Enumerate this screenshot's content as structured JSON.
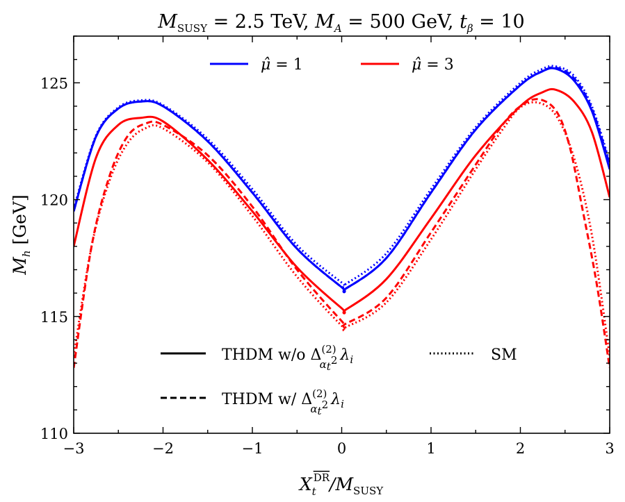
{
  "chart_data": {
    "type": "line",
    "title": {
      "lead": "M",
      "lead_sub": "SUSY",
      "rest1": " = 2.5 TeV, ",
      "lead2": "M",
      "lead2_sub": "A",
      "rest2": " = 500 GeV, ",
      "lead3": "t",
      "lead3_sub": "β",
      "rest3": " = 10"
    },
    "xlabel": {
      "main": "X",
      "sub": "t",
      "sup": "DR",
      "rest": "/M",
      "rest_sub": "SUSY"
    },
    "ylabel": {
      "main": "M",
      "sub": "h",
      "rest": " [GeV]"
    },
    "xlim": [
      -3,
      3
    ],
    "ylim": [
      110,
      127
    ],
    "xticks": [
      -3,
      -2,
      -1,
      0,
      1,
      2,
      3
    ],
    "xtick_labels": [
      "−3",
      "−2",
      "−1",
      "0",
      "1",
      "2",
      "3"
    ],
    "yticks": [
      110,
      115,
      120,
      125
    ],
    "ytick_labels": [
      "110",
      "115",
      "120",
      "125"
    ],
    "color_legend": [
      {
        "label_pre": "μ̂ = ",
        "label_val": "1",
        "color": "#0000ff"
      },
      {
        "label_pre": "μ̂ = ",
        "label_val": "3",
        "color": "#ff0000"
      }
    ],
    "style_legend": [
      {
        "text": "THDM w/o Δ",
        "sup": "(2)",
        "sub": "α",
        "sub2": "t",
        "sup2": "2",
        "tail": "λ",
        "tail_sub": "i",
        "dash": "solid"
      },
      {
        "text": "SM",
        "dash": "dotted"
      },
      {
        "text": "THDM w/ Δ",
        "sup": "(2)",
        "sub": "α",
        "sub2": "t",
        "sup2": "2",
        "tail": "λ",
        "tail_sub": "i",
        "dash": "dashed"
      }
    ],
    "series": [
      {
        "name": "mu1-thdm-wo",
        "color": "#0000ff",
        "dash": "solid",
        "x": [
          -3.0,
          -2.75,
          -2.5,
          -2.25,
          -2.0,
          -1.5,
          -1.0,
          -0.5,
          0.0,
          0.05,
          0.5,
          1.0,
          1.5,
          2.0,
          2.25,
          2.4,
          2.6,
          2.8,
          3.0
        ],
        "y": [
          119.5,
          122.7,
          123.9,
          124.2,
          124.0,
          122.5,
          120.3,
          117.9,
          116.25,
          116.2,
          117.5,
          120.3,
          123.0,
          124.9,
          125.5,
          125.6,
          125.1,
          123.8,
          121.3
        ]
      },
      {
        "name": "mu1-thdm-w",
        "color": "#0000ff",
        "dash": "dashed",
        "x": [
          -3.0,
          -2.75,
          -2.5,
          -2.25,
          -2.0,
          -1.5,
          -1.0,
          -0.5,
          0.0,
          0.05,
          0.5,
          1.0,
          1.5,
          2.0,
          2.25,
          2.4,
          2.6,
          2.8,
          3.0
        ],
        "y": [
          119.5,
          122.7,
          123.9,
          124.2,
          124.0,
          122.5,
          120.3,
          117.9,
          116.25,
          116.2,
          117.5,
          120.3,
          123.0,
          124.9,
          125.5,
          125.65,
          125.2,
          123.9,
          121.5
        ]
      },
      {
        "name": "mu1-sm",
        "color": "#0000ff",
        "dash": "dotted",
        "x": [
          -3.0,
          -2.75,
          -2.5,
          -2.25,
          -2.0,
          -1.5,
          -1.0,
          -0.5,
          0.0,
          0.05,
          0.5,
          1.0,
          1.5,
          2.0,
          2.25,
          2.4,
          2.6,
          2.8,
          3.0
        ],
        "y": [
          119.6,
          122.75,
          123.95,
          124.25,
          124.05,
          122.6,
          120.45,
          118.05,
          116.45,
          116.4,
          117.7,
          120.45,
          123.1,
          125.0,
          125.6,
          125.7,
          125.3,
          124.0,
          121.6
        ]
      },
      {
        "name": "mu3-thdm-wo",
        "color": "#ff0000",
        "dash": "solid",
        "x": [
          -3.0,
          -2.75,
          -2.5,
          -2.25,
          -2.0,
          -1.5,
          -1.0,
          -0.5,
          0.0,
          0.05,
          0.5,
          1.0,
          1.5,
          2.0,
          2.25,
          2.4,
          2.6,
          2.8,
          3.0
        ],
        "y": [
          118.0,
          121.8,
          123.2,
          123.5,
          123.35,
          121.7,
          119.5,
          117.1,
          115.35,
          115.3,
          116.6,
          119.2,
          121.9,
          124.0,
          124.6,
          124.7,
          124.2,
          122.9,
          120.1
        ]
      },
      {
        "name": "mu3-thdm-w",
        "color": "#ff0000",
        "dash": "dashed",
        "x": [
          -3.0,
          -2.8,
          -2.6,
          -2.4,
          -2.2,
          -2.0,
          -1.5,
          -1.0,
          -0.5,
          0.0,
          0.05,
          0.5,
          1.0,
          1.5,
          1.8,
          2.0,
          2.2,
          2.4,
          2.55,
          2.7,
          2.85,
          3.0
        ],
        "y": [
          112.8,
          118.0,
          121.0,
          122.7,
          123.25,
          123.2,
          121.9,
          119.7,
          117.0,
          114.8,
          114.7,
          115.8,
          118.6,
          121.5,
          123.2,
          124.0,
          124.3,
          123.8,
          122.3,
          119.5,
          116.5,
          112.8
        ]
      },
      {
        "name": "mu3-sm",
        "color": "#ff0000",
        "dash": "dotted",
        "x": [
          -3.0,
          -2.8,
          -2.6,
          -2.4,
          -2.2,
          -2.0,
          -1.5,
          -1.0,
          -0.5,
          0.0,
          0.05,
          0.5,
          1.0,
          1.5,
          1.8,
          2.0,
          2.2,
          2.4,
          2.6,
          2.8,
          3.0
        ],
        "y": [
          113.3,
          118.0,
          120.8,
          122.4,
          123.05,
          123.05,
          121.6,
          119.3,
          116.7,
          114.6,
          114.55,
          115.6,
          118.3,
          121.3,
          123.0,
          123.95,
          124.15,
          123.6,
          121.8,
          118.5,
          113.3
        ]
      }
    ]
  }
}
